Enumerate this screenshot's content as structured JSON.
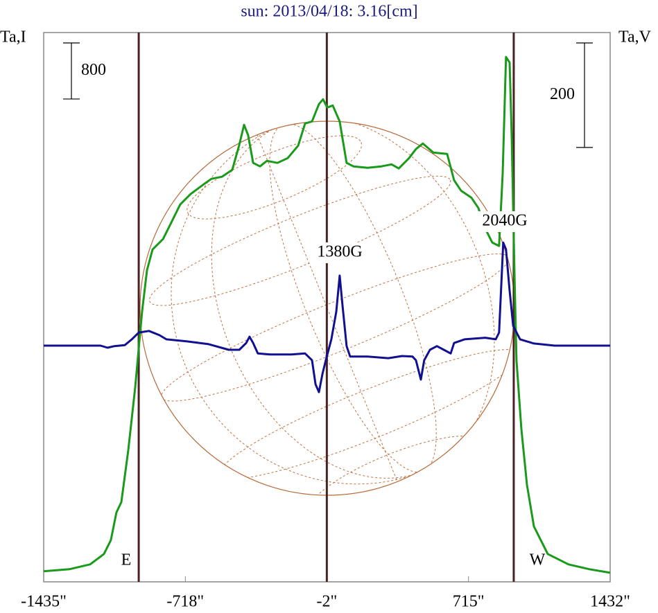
{
  "chart_data": {
    "type": "line",
    "title": "sun: 2013/04/18: 3.16[cm]",
    "y_label": "Ta,I",
    "y2_label": "Ta,V",
    "xlim": [
      -1435,
      1432
    ],
    "xticks": [
      {
        "value": -1435,
        "label": "-1435\""
      },
      {
        "value": -718,
        "label": "-718\""
      },
      {
        "value": -2,
        "label": "-2\""
      },
      {
        "value": 715,
        "label": "715\""
      },
      {
        "value": 1432,
        "label": "1432\""
      }
    ],
    "ylim": [
      -150,
      7690
    ],
    "y2lim": [
      -452,
      599
    ],
    "scale_bar_y": 800,
    "scale_bar_y2": 200,
    "limb_lines": [
      -954,
      -2,
      944
    ],
    "limb_line_color": "#4a2222",
    "limb_labels": [
      "E",
      "W"
    ],
    "annotations": [
      "1380G",
      "2040G"
    ],
    "series": [
      {
        "color": "#1a9a1a",
        "x": [
          -1435,
          -1305,
          -1200,
          -1130,
          -1095,
          -1067,
          -1042,
          -1007,
          -972,
          -937,
          -912,
          -884,
          -831,
          -796,
          -744,
          -691,
          -621,
          -586,
          -533,
          -481,
          -446,
          -421,
          -400,
          -375,
          -340,
          -305,
          -252,
          -200,
          -147,
          -112,
          -77,
          -42,
          -21,
          0,
          28,
          63,
          98,
          133,
          204,
          274,
          326,
          362,
          414,
          449,
          484,
          537,
          607,
          642,
          677,
          729,
          765,
          800,
          835,
          870,
          888,
          905,
          923,
          934,
          948,
          958,
          983,
          1011,
          1046,
          1116,
          1221,
          1327,
          1432
        ],
        "values": [
          0,
          30,
          99,
          247,
          445,
          840,
          988,
          1729,
          2618,
          3705,
          4298,
          4594,
          4742,
          4940,
          5236,
          5385,
          5533,
          5602,
          5632,
          5730,
          6076,
          6373,
          6224,
          5829,
          5780,
          5859,
          5829,
          5898,
          6076,
          6392,
          6422,
          6669,
          6738,
          6620,
          6649,
          6422,
          5829,
          5780,
          5760,
          5780,
          5809,
          5750,
          5898,
          6027,
          6106,
          5977,
          5958,
          5582,
          5434,
          5335,
          5187,
          4891,
          4693,
          4644,
          5681,
          7341,
          7262,
          6175,
          4199,
          3013,
          2025,
          1235,
          642,
          247,
          99,
          30,
          -20
        ]
      },
      {
        "color": "#101090",
        "axis": "y2",
        "x": [
          -1435,
          -1147,
          -1112,
          -1077,
          -1024,
          -989,
          -954,
          -902,
          -849,
          -814,
          -709,
          -603,
          -498,
          -445,
          -410,
          -393,
          -375,
          -351,
          -288,
          -182,
          -112,
          -77,
          -59,
          -42,
          -24,
          -7,
          21,
          46,
          63,
          77,
          98,
          116,
          204,
          309,
          379,
          432,
          449,
          474,
          491,
          520,
          555,
          590,
          625,
          642,
          695,
          800,
          853,
          870,
          891,
          905,
          923,
          941,
          976,
          1046,
          1151,
          1432
        ],
        "values": [
          0,
          0,
          -4,
          -1,
          1,
          12,
          25,
          28,
          20,
          12,
          8,
          3,
          -8,
          -8,
          5,
          17,
          5,
          -15,
          -17,
          -17,
          -15,
          -28,
          -74,
          -89,
          -54,
          -28,
          12,
          65,
          134,
          78,
          -1,
          -21,
          -21,
          -24,
          -20,
          -21,
          -28,
          -65,
          -28,
          -8,
          -1,
          -8,
          -15,
          5,
          12,
          15,
          12,
          25,
          197,
          184,
          105,
          38,
          12,
          4,
          0,
          0
        ]
      }
    ]
  }
}
